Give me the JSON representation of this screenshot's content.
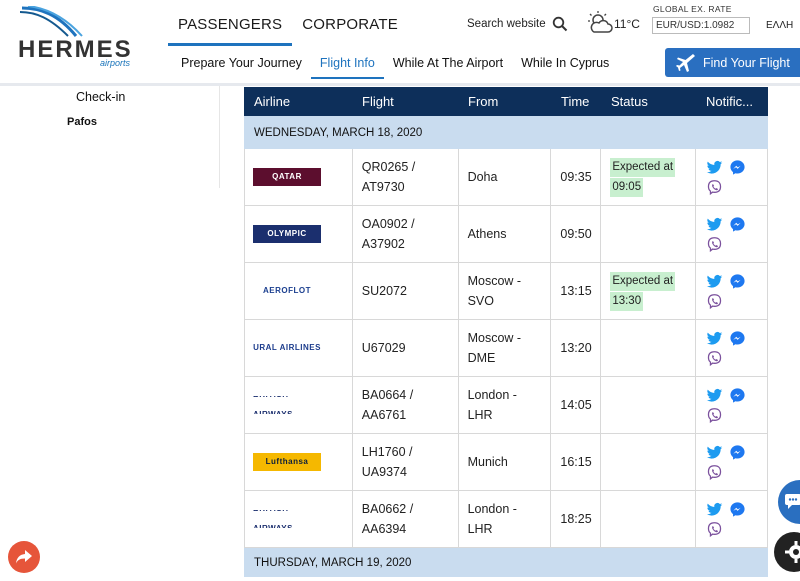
{
  "header": {
    "logo_text": "HERMES",
    "logo_sub": "airports",
    "main_nav": [
      {
        "label": "PASSENGERS",
        "active": true
      },
      {
        "label": "CORPORATE",
        "active": false
      }
    ],
    "sub_nav": [
      {
        "label": "Prepare Your Journey",
        "active": false
      },
      {
        "label": "Flight Info",
        "active": true
      },
      {
        "label": "While At The Airport",
        "active": false
      },
      {
        "label": "While In Cyprus",
        "active": false
      }
    ],
    "search_label": "Search website",
    "temperature": "11°C",
    "rate_label": "GLOBAL EX. RATE",
    "rate_value": "EUR/USD:1.0982",
    "language": "ΕΛΛΗ",
    "find_flight": "Find Your Flight"
  },
  "sidebar": {
    "items": [
      "Check-in",
      "Pafos"
    ]
  },
  "table": {
    "headers": [
      "Airline",
      "Flight",
      "From",
      "Time",
      "Status",
      "Notific..."
    ],
    "date_1": "WEDNESDAY, MARCH 18, 2020",
    "date_2": "THURSDAY, MARCH 19, 2020",
    "rows": [
      {
        "airline": "QATAR",
        "logo_bg": "#5c0e2e",
        "logo_fg": "#ffffff",
        "flight_1": "QR0265 /",
        "flight_2": "AT9730",
        "from_1": "Doha",
        "from_2": "",
        "time": "09:35",
        "status_1": "Expected at",
        "status_2": "09:05"
      },
      {
        "airline": "OLYMPIC",
        "logo_bg": "#1b2f6e",
        "logo_fg": "#ffffff",
        "flight_1": "OA0902 /",
        "flight_2": "A37902",
        "from_1": "Athens",
        "from_2": "",
        "time": "09:50",
        "status_1": "",
        "status_2": ""
      },
      {
        "airline": "AEROFLOT",
        "logo_bg": "#ffffff",
        "logo_fg": "#1b3f8f",
        "flight_1": "SU2072",
        "flight_2": "",
        "from_1": "Moscow -",
        "from_2": "SVO",
        "time": "13:15",
        "status_1": "Expected at",
        "status_2": "13:30"
      },
      {
        "airline": "URAL AIRLINES",
        "logo_bg": "#ffffff",
        "logo_fg": "#1c3c8c",
        "flight_1": "U67029",
        "flight_2": "",
        "from_1": "Moscow -",
        "from_2": "DME",
        "time": "13:20",
        "status_1": "",
        "status_2": ""
      },
      {
        "airline": "BRITISH AIRWAYS",
        "logo_bg": "#ffffff",
        "logo_fg": "#1b2f6e",
        "flight_1": "BA0664 /",
        "flight_2": "AA6761",
        "from_1": "London -",
        "from_2": "LHR",
        "time": "14:05",
        "status_1": "",
        "status_2": ""
      },
      {
        "airline": "Lufthansa",
        "logo_bg": "#f5b800",
        "logo_fg": "#0a1d3d",
        "flight_1": "LH1760 /",
        "flight_2": "UA9374",
        "from_1": "Munich",
        "from_2": "",
        "time": "16:15",
        "status_1": "",
        "status_2": ""
      },
      {
        "airline": "BRITISH AIRWAYS",
        "logo_bg": "#ffffff",
        "logo_fg": "#1b2f6e",
        "flight_1": "BA0662 /",
        "flight_2": "AA6394",
        "from_1": "London -",
        "from_2": "LHR",
        "time": "18:25",
        "status_1": "",
        "status_2": ""
      }
    ]
  },
  "icons": {
    "twitter": "twitter-icon",
    "messenger": "messenger-icon",
    "viber": "viber-icon"
  },
  "colors": {
    "header_dark": "#0d2f5a",
    "date_bg": "#c9dcef",
    "accent": "#1e73be",
    "status_bg": "#c8efcf"
  }
}
